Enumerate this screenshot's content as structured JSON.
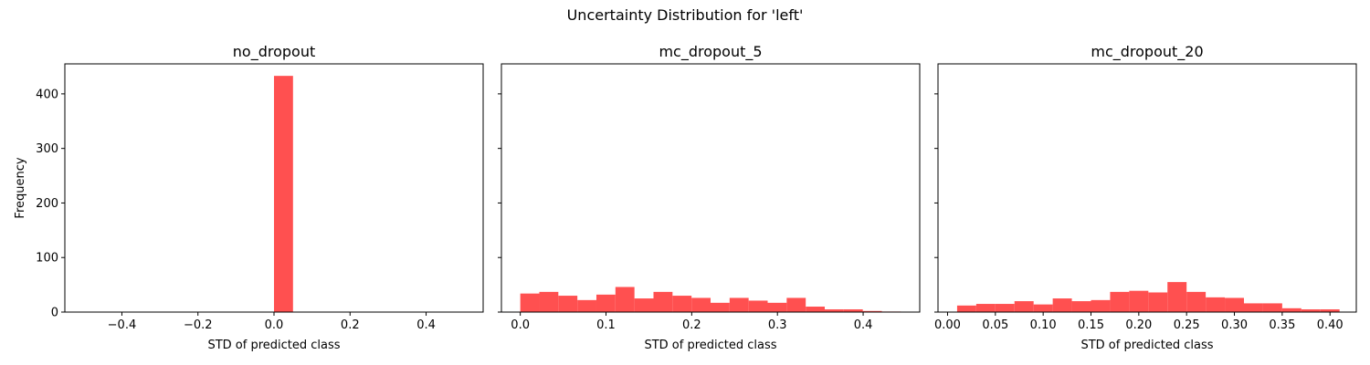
{
  "figure": {
    "suptitle": "Uncertainty Distribution for 'left'"
  },
  "chart_data": [
    {
      "type": "bar",
      "title": "no_dropout",
      "xlabel": "STD of predicted class",
      "ylabel": "Frequency",
      "xlim": [
        -0.55,
        0.55
      ],
      "ylim": [
        0,
        455
      ],
      "xticks": [
        -0.4,
        -0.2,
        0.0,
        0.2,
        0.4
      ],
      "xtick_labels": [
        "−0.4",
        "−0.2",
        "0.0",
        "0.2",
        "0.4"
      ],
      "yticks": [
        0,
        100,
        200,
        300,
        400
      ],
      "ytick_labels": [
        "0",
        "100",
        "200",
        "300",
        "400"
      ],
      "bin_edges": [
        0.0,
        0.05
      ],
      "values": [
        433
      ],
      "color": "#ff5050"
    },
    {
      "type": "bar",
      "title": "mc_dropout_5",
      "xlabel": "STD of predicted class",
      "ylabel": "",
      "xlim": [
        -0.022,
        0.466
      ],
      "ylim": [
        0,
        455
      ],
      "xticks": [
        0.0,
        0.1,
        0.2,
        0.3,
        0.4
      ],
      "xtick_labels": [
        "0.0",
        "0.1",
        "0.2",
        "0.3",
        "0.4"
      ],
      "yticks": [
        0,
        100,
        200,
        300,
        400
      ],
      "ytick_labels": [
        "",
        "",
        "",
        "",
        ""
      ],
      "bin_edges": [
        0.0,
        0.0222,
        0.0444,
        0.0666,
        0.0888,
        0.111,
        0.1332,
        0.1554,
        0.1776,
        0.1998,
        0.222,
        0.2442,
        0.2664,
        0.2886,
        0.3108,
        0.333,
        0.3552,
        0.3774,
        0.3996,
        0.4218,
        0.444
      ],
      "values": [
        34,
        37,
        30,
        22,
        32,
        46,
        25,
        37,
        30,
        26,
        17,
        26,
        21,
        17,
        26,
        10,
        5,
        5,
        2,
        1
      ],
      "color": "#ff5050"
    },
    {
      "type": "bar",
      "title": "mc_dropout_20",
      "xlabel": "STD of predicted class",
      "ylabel": "",
      "xlim": [
        -0.01,
        0.4275
      ],
      "ylim": [
        0,
        455
      ],
      "xticks": [
        0.0,
        0.05,
        0.1,
        0.15,
        0.2,
        0.25,
        0.3,
        0.35,
        0.4
      ],
      "xtick_labels": [
        "0.00",
        "0.05",
        "0.10",
        "0.15",
        "0.20",
        "0.25",
        "0.30",
        "0.35",
        "0.40"
      ],
      "yticks": [
        0,
        100,
        200,
        300,
        400
      ],
      "ytick_labels": [
        "",
        "",
        "",
        "",
        ""
      ],
      "bin_edges": [
        0.01,
        0.03,
        0.05,
        0.07,
        0.09,
        0.11,
        0.13,
        0.15,
        0.17,
        0.19,
        0.21,
        0.23,
        0.25,
        0.27,
        0.29,
        0.31,
        0.33,
        0.35,
        0.37,
        0.39,
        0.41
      ],
      "values": [
        12,
        15,
        15,
        20,
        14,
        25,
        20,
        22,
        37,
        39,
        36,
        55,
        37,
        27,
        26,
        16,
        16,
        7,
        5,
        5
      ],
      "color": "#ff5050"
    }
  ]
}
